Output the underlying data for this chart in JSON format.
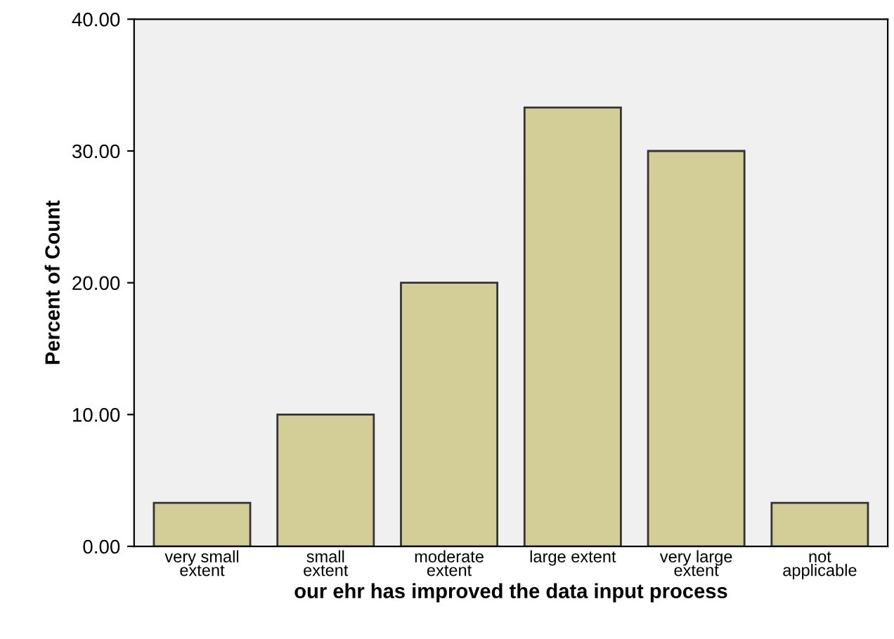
{
  "chart_data": {
    "type": "bar",
    "xlabel": "our ehr has improved the data input process",
    "ylabel": "Percent of Count",
    "categories": [
      "very small\nextent",
      "small\nextent",
      "moderate\nextent",
      "large extent",
      "very large\nextent",
      "not\napplicable"
    ],
    "values": [
      3.3,
      10,
      20,
      33.3,
      30,
      3.3
    ],
    "color": "#d3ce97",
    "ylim": [
      0,
      40
    ],
    "yticks": [
      {
        "value": 0,
        "label": "0.00"
      },
      {
        "value": 10,
        "label": "10.00"
      },
      {
        "value": 20,
        "label": "20.00"
      },
      {
        "value": 30,
        "label": "30.00"
      },
      {
        "value": 40,
        "label": "40.00"
      }
    ],
    "grid": false
  }
}
